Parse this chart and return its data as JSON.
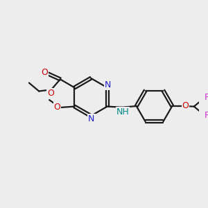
{
  "bg_color": "#ededee",
  "bond_color": "#1a1a1a",
  "bond_width": 1.6,
  "N_color": "#2020cc",
  "O_color": "#cc0000",
  "F_color": "#cc33cc",
  "NH_color": "#008888",
  "C_color": "#1a1a1a",
  "figsize": [
    3.0,
    3.0
  ],
  "dpi": 100,
  "xlim": [
    0,
    10
  ],
  "ylim": [
    0,
    10
  ]
}
